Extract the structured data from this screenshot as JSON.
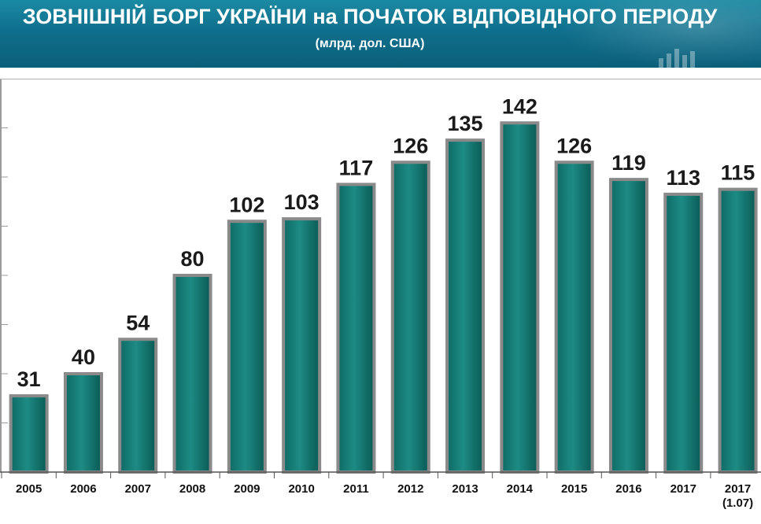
{
  "header": {
    "title": "ЗОВНІШНІЙ БОРГ УКРАЇНИ на ПОЧАТОК ВІДПОВІДНОГО ПЕРІОДУ",
    "subtitle": "(млрд. дол. США)"
  },
  "colors": {
    "header_bg": "#0f6f8c",
    "bar_fill": "#137a74",
    "bar_stroke": "#8a8a8a",
    "label_color": "#1a1a1a"
  },
  "chart_data": {
    "type": "bar",
    "title": "ЗОВНІШНІЙ БОРГ УКРАЇНИ на ПОЧАТОК ВІДПОВІДНОГО ПЕРІОДУ",
    "subtitle": "(млрд. дол. США)",
    "xlabel": "",
    "ylabel": "",
    "categories": [
      [
        "2005"
      ],
      [
        "2006"
      ],
      [
        "2007"
      ],
      [
        "2008"
      ],
      [
        "2009"
      ],
      [
        "2010"
      ],
      [
        "2011"
      ],
      [
        "2012"
      ],
      [
        "2013"
      ],
      [
        "2014"
      ],
      [
        "2015"
      ],
      [
        "2016"
      ],
      [
        "2017"
      ],
      [
        "2017",
        "(1.07)"
      ]
    ],
    "values": [
      31,
      40,
      54,
      80,
      102,
      103,
      117,
      126,
      135,
      142,
      126,
      119,
      113,
      115
    ],
    "data_labels": [
      "31",
      "40",
      "54",
      "80",
      "102",
      "103",
      "117",
      "126",
      "135",
      "142",
      "126",
      "119",
      "113",
      "115"
    ],
    "ylim": [
      0,
      160
    ],
    "grid": true,
    "legend": "none"
  }
}
